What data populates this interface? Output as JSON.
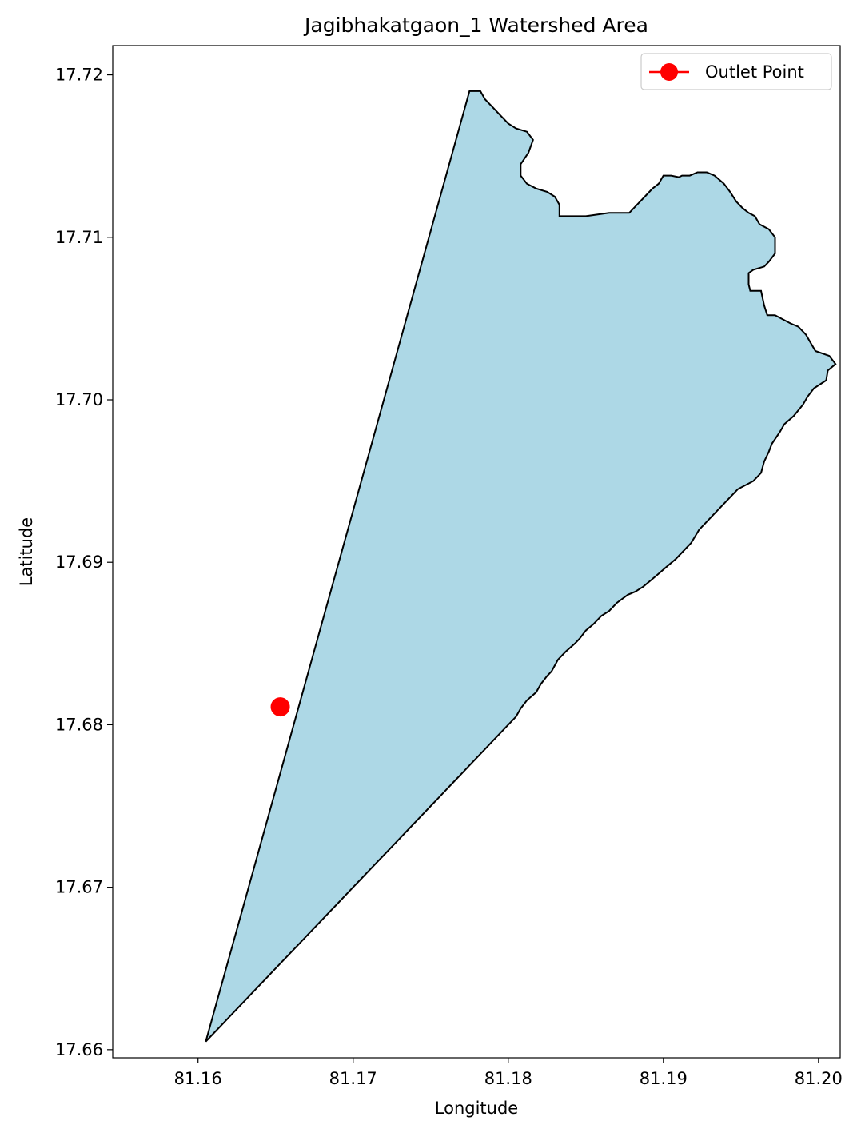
{
  "title": "Jagibhakatgaon_1 Watershed Area",
  "xlabel": "Longitude",
  "ylabel": "Latitude",
  "legend": {
    "label": "Outlet Point",
    "placement": "top-right"
  },
  "colors": {
    "fill": "#add8e6",
    "outline": "#000000",
    "outlet": "#ff0000"
  },
  "x_ticks": [
    "81.16",
    "81.17",
    "81.18",
    "81.19",
    "81.20"
  ],
  "y_ticks": [
    "17.72",
    "17.71",
    "17.70",
    "17.69",
    "17.68",
    "17.67",
    "17.66"
  ],
  "chart_data": {
    "type": "area",
    "xlim": [
      81.1545,
      81.2014
    ],
    "ylim": [
      17.6595,
      17.7218
    ],
    "outlet_point": {
      "lon": 81.1653,
      "lat": 17.6811
    },
    "boundary": [
      [
        81.1775,
        17.719
      ],
      [
        81.1782,
        17.719
      ],
      [
        81.1785,
        17.7185
      ],
      [
        81.179,
        17.718
      ],
      [
        81.1795,
        17.7175
      ],
      [
        81.18,
        17.717
      ],
      [
        81.1805,
        17.7167
      ],
      [
        81.1812,
        17.7165
      ],
      [
        81.1816,
        17.716
      ],
      [
        81.1813,
        17.7152
      ],
      [
        81.1808,
        17.7145
      ],
      [
        81.1808,
        17.7138
      ],
      [
        81.1812,
        17.7133
      ],
      [
        81.1818,
        17.713
      ],
      [
        81.1825,
        17.7128
      ],
      [
        81.183,
        17.7125
      ],
      [
        81.1833,
        17.712
      ],
      [
        81.1833,
        17.7113
      ],
      [
        81.185,
        17.7113
      ],
      [
        81.1865,
        17.7115
      ],
      [
        81.1878,
        17.7115
      ],
      [
        81.1883,
        17.712
      ],
      [
        81.1888,
        17.7125
      ],
      [
        81.1893,
        17.713
      ],
      [
        81.1897,
        17.7133
      ],
      [
        81.19,
        17.7138
      ],
      [
        81.1905,
        17.7138
      ],
      [
        81.191,
        17.7137
      ],
      [
        81.1912,
        17.7138
      ],
      [
        81.1917,
        17.7138
      ],
      [
        81.1922,
        17.714
      ],
      [
        81.1928,
        17.714
      ],
      [
        81.1933,
        17.7138
      ],
      [
        81.1939,
        17.7133
      ],
      [
        81.1943,
        17.7128
      ],
      [
        81.1947,
        17.7122
      ],
      [
        81.1951,
        17.7118
      ],
      [
        81.1955,
        17.7115
      ],
      [
        81.1959,
        17.7113
      ],
      [
        81.1962,
        17.7108
      ],
      [
        81.1968,
        17.7105
      ],
      [
        81.1972,
        17.71
      ],
      [
        81.1972,
        17.709
      ],
      [
        81.1968,
        17.7085
      ],
      [
        81.1965,
        17.7082
      ],
      [
        81.1958,
        17.708
      ],
      [
        81.1955,
        17.7078
      ],
      [
        81.1955,
        17.7071
      ],
      [
        81.1956,
        17.7067
      ],
      [
        81.1963,
        17.7067
      ],
      [
        81.1965,
        17.7058
      ],
      [
        81.1967,
        17.7052
      ],
      [
        81.1972,
        17.7052
      ],
      [
        81.1976,
        17.705
      ],
      [
        81.1982,
        17.7047
      ],
      [
        81.1987,
        17.7045
      ],
      [
        81.1992,
        17.704
      ],
      [
        81.1995,
        17.7035
      ],
      [
        81.1998,
        17.703
      ],
      [
        81.2007,
        17.7027
      ],
      [
        81.2011,
        17.7022
      ],
      [
        81.2006,
        17.7018
      ],
      [
        81.2005,
        17.7012
      ],
      [
        81.1997,
        17.7007
      ],
      [
        81.1993,
        17.7002
      ],
      [
        81.199,
        17.6997
      ],
      [
        81.1984,
        17.699
      ],
      [
        81.1978,
        17.6985
      ],
      [
        81.1975,
        17.698
      ],
      [
        81.197,
        17.6973
      ],
      [
        81.1968,
        17.6968
      ],
      [
        81.1965,
        17.6962
      ],
      [
        81.1963,
        17.6955
      ],
      [
        81.1958,
        17.695
      ],
      [
        81.1948,
        17.6945
      ],
      [
        81.1943,
        17.694
      ],
      [
        81.1938,
        17.6935
      ],
      [
        81.1933,
        17.693
      ],
      [
        81.1928,
        17.6925
      ],
      [
        81.1923,
        17.692
      ],
      [
        81.1918,
        17.6912
      ],
      [
        81.1913,
        17.6907
      ],
      [
        81.1908,
        17.6902
      ],
      [
        81.1903,
        17.6898
      ],
      [
        81.1897,
        17.6893
      ],
      [
        81.1892,
        17.6889
      ],
      [
        81.1887,
        17.6885
      ],
      [
        81.1882,
        17.6882
      ],
      [
        81.1877,
        17.688
      ],
      [
        81.187,
        17.6875
      ],
      [
        81.1865,
        17.687
      ],
      [
        81.186,
        17.6867
      ],
      [
        81.1855,
        17.6862
      ],
      [
        81.185,
        17.6858
      ],
      [
        81.1846,
        17.6853
      ],
      [
        81.1843,
        17.685
      ],
      [
        81.1837,
        17.6845
      ],
      [
        81.1832,
        17.684
      ],
      [
        81.1828,
        17.6833
      ],
      [
        81.1825,
        17.683
      ],
      [
        81.1821,
        17.6825
      ],
      [
        81.1818,
        17.682
      ],
      [
        81.1812,
        17.6815
      ],
      [
        81.1808,
        17.681
      ],
      [
        81.1805,
        17.6805
      ],
      [
        81.18,
        17.68
      ],
      [
        81.1795,
        17.6795
      ],
      [
        81.179,
        17.679
      ],
      [
        81.1785,
        17.6785
      ],
      [
        81.178,
        17.678
      ],
      [
        81.1775,
        17.6775
      ],
      [
        81.177,
        17.677
      ],
      [
        81.1765,
        17.6765
      ],
      [
        81.176,
        17.676
      ],
      [
        81.1755,
        17.6755
      ],
      [
        81.175,
        17.675
      ],
      [
        81.1745,
        17.6745
      ],
      [
        81.174,
        17.674
      ],
      [
        81.1735,
        17.6735
      ],
      [
        81.173,
        17.673
      ],
      [
        81.1725,
        17.6725
      ],
      [
        81.172,
        17.672
      ],
      [
        81.1715,
        17.6715
      ],
      [
        81.171,
        17.671
      ],
      [
        81.1705,
        17.6705
      ],
      [
        81.17,
        17.67
      ],
      [
        81.1695,
        17.6695
      ],
      [
        81.169,
        17.669
      ],
      [
        81.1685,
        17.6685
      ],
      [
        81.168,
        17.668
      ],
      [
        81.1675,
        17.6675
      ],
      [
        81.167,
        17.667
      ],
      [
        81.1665,
        17.6665
      ],
      [
        81.166,
        17.666
      ],
      [
        81.1655,
        17.6655
      ],
      [
        81.165,
        17.665
      ],
      [
        81.1645,
        17.6645
      ],
      [
        81.164,
        17.664
      ],
      [
        81.1635,
        17.6635
      ],
      [
        81.163,
        17.663
      ],
      [
        81.1625,
        17.6625
      ],
      [
        81.162,
        17.662
      ],
      [
        81.1615,
        17.6615
      ],
      [
        81.161,
        17.661
      ],
      [
        81.1605,
        17.6605
      ]
    ]
  }
}
